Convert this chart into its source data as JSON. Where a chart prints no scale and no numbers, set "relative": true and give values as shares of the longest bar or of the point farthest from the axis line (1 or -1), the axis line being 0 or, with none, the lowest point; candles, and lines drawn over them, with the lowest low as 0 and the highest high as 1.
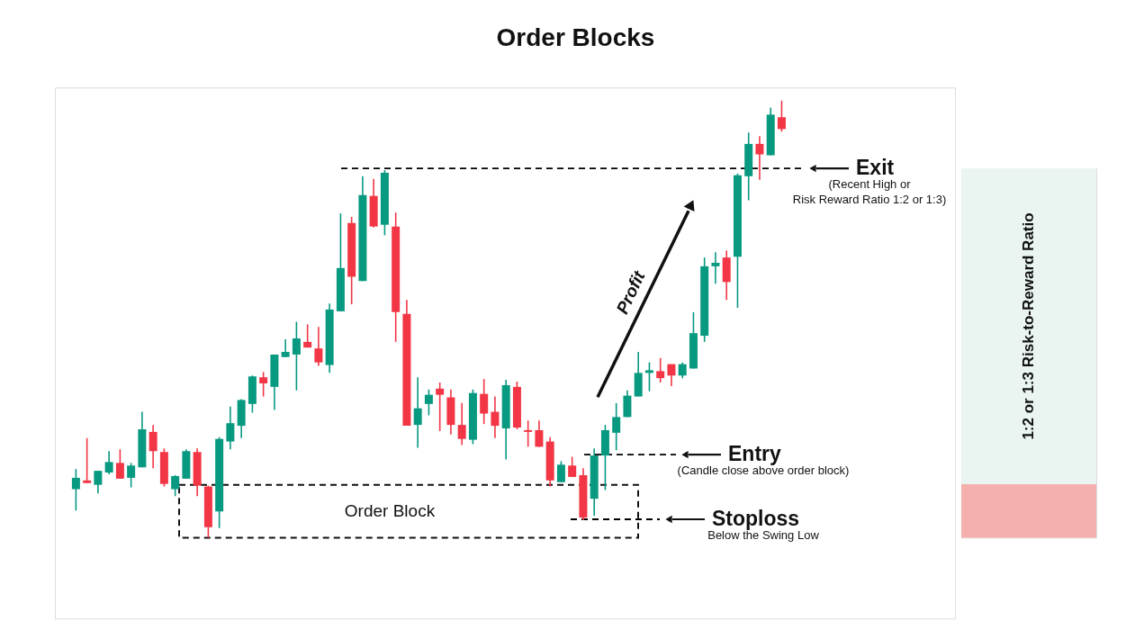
{
  "chart_data": [
    {
      "type": "candlestick",
      "title": "Order Blocks",
      "relative": true,
      "tick_labels": false,
      "categories": [
        null,
        null,
        null,
        null,
        null,
        null,
        null,
        null,
        null,
        null,
        null,
        null,
        null,
        null,
        null,
        null,
        null,
        null,
        null,
        null,
        null,
        null,
        null,
        null,
        null,
        null,
        null,
        null,
        null,
        null,
        null,
        null,
        null,
        null,
        null,
        null,
        null,
        null,
        null,
        null,
        null,
        null,
        null,
        null,
        null,
        null,
        null,
        null,
        null,
        null,
        null,
        null,
        null,
        null,
        null,
        null,
        null,
        null,
        null,
        null,
        null,
        null,
        null,
        null,
        null
      ],
      "ohlc": [
        [
          0.111,
          0.157,
          0.062,
          0.137
        ],
        [
          0.131,
          0.228,
          0.125,
          0.125
        ],
        [
          0.121,
          0.153,
          0.101,
          0.153
        ],
        [
          0.149,
          0.198,
          0.145,
          0.173
        ],
        [
          0.171,
          0.202,
          0.135,
          0.135
        ],
        [
          0.137,
          0.171,
          0.115,
          0.165
        ],
        [
          0.161,
          0.288,
          0.161,
          0.248
        ],
        [
          0.242,
          0.258,
          0.159,
          0.198
        ],
        [
          0.196,
          0.204,
          0.117,
          0.123
        ],
        [
          0.111,
          0.143,
          0.095,
          0.141
        ],
        [
          0.135,
          0.202,
          0.135,
          0.198
        ],
        [
          0.196,
          0.204,
          0.095,
          0.119
        ],
        [
          0.117,
          0.119,
          0,
          0.024
        ],
        [
          0.06,
          0.23,
          0.022,
          0.226
        ],
        [
          0.22,
          0.3,
          0.202,
          0.262
        ],
        [
          0.256,
          0.317,
          0.228,
          0.315
        ],
        [
          0.306,
          0.371,
          0.286,
          0.369
        ],
        [
          0.367,
          0.379,
          0.323,
          0.353
        ],
        [
          0.345,
          0.419,
          0.292,
          0.419
        ],
        [
          0.413,
          0.454,
          0.413,
          0.425
        ],
        [
          0.419,
          0.494,
          0.337,
          0.456
        ],
        [
          0.448,
          0.488,
          0.435,
          0.435
        ],
        [
          0.433,
          0.482,
          0.393,
          0.401
        ],
        [
          0.395,
          0.536,
          0.377,
          0.522
        ],
        [
          0.518,
          0.742,
          0.518,
          0.617
        ],
        [
          0.72,
          0.734,
          0.534,
          0.597
        ],
        [
          0.587,
          0.827,
          0.587,
          0.784
        ],
        [
          0.782,
          0.821,
          0.71,
          0.712
        ],
        [
          0.716,
          0.841,
          0.692,
          0.835
        ],
        [
          0.712,
          0.744,
          0.448,
          0.516
        ],
        [
          0.512,
          0.544,
          0.256,
          0.256
        ],
        [
          0.258,
          0.367,
          0.206,
          0.296
        ],
        [
          0.306,
          0.339,
          0.28,
          0.327
        ],
        [
          0.341,
          0.355,
          0.244,
          0.327
        ],
        [
          0.321,
          0.339,
          0.236,
          0.258
        ],
        [
          0.258,
          0.308,
          0.212,
          0.226
        ],
        [
          0.224,
          0.339,
          0.214,
          0.331
        ],
        [
          0.329,
          0.363,
          0.26,
          0.284
        ],
        [
          0.288,
          0.323,
          0.228,
          0.256
        ],
        [
          0.25,
          0.361,
          0.179,
          0.349
        ],
        [
          0.345,
          0.357,
          0.248,
          0.252
        ],
        [
          0.246,
          0.268,
          0.208,
          0.242
        ],
        [
          0.246,
          0.268,
          0.208,
          0.208
        ],
        [
          0.22,
          0.23,
          0.117,
          0.131
        ],
        [
          0.127,
          0.175,
          0.127,
          0.167
        ],
        [
          0.165,
          0.185,
          0.139,
          0.139
        ],
        [
          0.143,
          0.159,
          0.04,
          0.046
        ],
        [
          0.089,
          0.204,
          0.05,
          0.188
        ],
        [
          0.188,
          0.258,
          0.109,
          0.246
        ],
        [
          0.24,
          0.308,
          0.2,
          0.276
        ],
        [
          0.276,
          0.337,
          0.276,
          0.325
        ],
        [
          0.323,
          0.425,
          0.323,
          0.377
        ],
        [
          0.377,
          0.401,
          0.335,
          0.383
        ],
        [
          0.381,
          0.411,
          0.355,
          0.365
        ],
        [
          0.397,
          0.397,
          0.347,
          0.371
        ],
        [
          0.371,
          0.401,
          0.365,
          0.397
        ],
        [
          0.387,
          0.516,
          0.387,
          0.468
        ],
        [
          0.462,
          0.641,
          0.448,
          0.621
        ],
        [
          0.621,
          0.653,
          0.581,
          0.629
        ],
        [
          0.641,
          0.657,
          0.544,
          0.585
        ],
        [
          0.643,
          0.833,
          0.526,
          0.829
        ],
        [
          0.827,
          0.927,
          0.772,
          0.901
        ],
        [
          0.901,
          0.919,
          0.819,
          0.877
        ],
        [
          0.875,
          0.984,
          0.875,
          0.968
        ],
        [
          0.962,
          1,
          0.929,
          0.935
        ]
      ],
      "colors": [
        "#089981",
        "#f23645",
        "#089981",
        "#089981",
        "#f23645",
        "#089981",
        "#089981",
        "#f23645",
        "#f23645",
        "#089981",
        "#089981",
        "#f23645",
        "#f23645",
        "#089981",
        "#089981",
        "#089981",
        "#089981",
        "#f23645",
        "#089981",
        "#089981",
        "#089981",
        "#f23645",
        "#f23645",
        "#089981",
        "#089981",
        "#f23645",
        "#089981",
        "#f23645",
        "#089981",
        "#f23645",
        "#f23645",
        "#089981",
        "#089981",
        "#f23645",
        "#f23645",
        "#f23645",
        "#089981",
        "#f23645",
        "#f23645",
        "#089981",
        "#f23645",
        "#f23645",
        "#f23645",
        "#f23645",
        "#089981",
        "#f23645",
        "#f23645",
        "#089981",
        "#089981",
        "#089981",
        "#089981",
        "#089981",
        "#089981",
        "#f23645",
        "#f23645",
        "#089981",
        "#089981",
        "#089981",
        "#089981",
        "#f23645",
        "#089981",
        "#089981",
        "#f23645",
        "#089981",
        "#f23645"
      ],
      "ref_lines": [
        {
          "axis": "y",
          "value": 0.845,
          "label": "Exit",
          "color": "#000000",
          "line_style": "dashed"
        },
        {
          "axis": "y",
          "value": 0.19,
          "label": "Entry",
          "color": "#000000",
          "line_style": "dashed"
        },
        {
          "axis": "y",
          "value": 0.042,
          "label": "Stoploss",
          "color": "#000000",
          "line_style": "dashed"
        }
      ],
      "bands": [
        {
          "axis": "y",
          "from": 0,
          "to": 0.121,
          "label": "Order Block",
          "color": "#ffffff"
        }
      ],
      "annotations": [
        "(Recent High or\nRisk Reward Ratio 1:2 or 1:3)",
        "(Candle close above order block)",
        "Below the Swing Low",
        "Profit"
      ]
    },
    {
      "type": "bar",
      "stacked": true,
      "relative": true,
      "tick_labels": false,
      "categories": [
        null
      ],
      "series": [
        {
          "color": "#f5b0ae",
          "values": [
            0.145
          ]
        },
        {
          "color": "#eaf5f2",
          "values": [
            0.855
          ]
        }
      ],
      "annotations": [
        "1:2 or 1:3 Risk-to-Reward Ratio"
      ]
    }
  ]
}
